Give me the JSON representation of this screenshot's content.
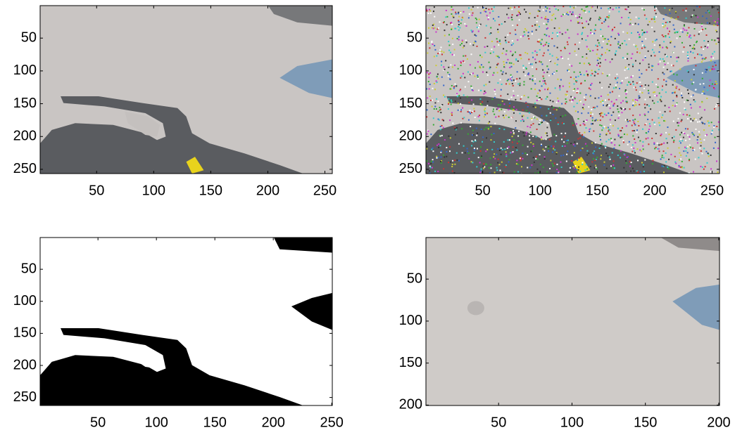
{
  "chart_data": [
    {
      "type": "image",
      "xlim": [
        0.5,
        256.5
      ],
      "ylim": [
        0.5,
        256.5
      ],
      "y_reversed": true,
      "xticks": [
        50,
        100,
        150,
        200,
        250
      ],
      "yticks": [
        50,
        100,
        150,
        200,
        250
      ]
    },
    {
      "type": "image",
      "xlim": [
        0.5,
        256.5
      ],
      "ylim": [
        0.5,
        256.5
      ],
      "y_reversed": true,
      "xticks": [
        50,
        100,
        150,
        200,
        250
      ],
      "yticks": [
        50,
        100,
        150,
        200,
        250
      ]
    },
    {
      "type": "image",
      "xlim": [
        0.5,
        250.5
      ],
      "ylim": [
        0.5,
        262.5
      ],
      "y_reversed": true,
      "xticks": [
        50,
        100,
        150,
        200,
        250
      ],
      "yticks": [
        50,
        100,
        150,
        200,
        250
      ]
    },
    {
      "type": "image",
      "xlim": [
        0.5,
        200.5
      ],
      "ylim": [
        0.5,
        200.5
      ],
      "y_reversed": true,
      "xticks": [
        50,
        100,
        150,
        200
      ],
      "yticks": [
        50,
        100,
        150,
        200
      ]
    }
  ]
}
